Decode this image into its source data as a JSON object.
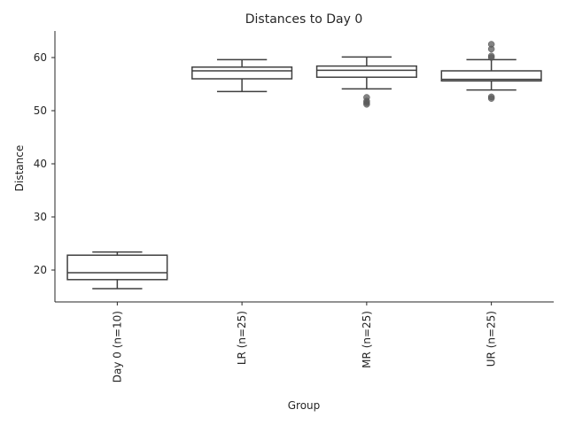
{
  "chart_data": {
    "type": "box",
    "title": "Distances to Day 0",
    "xlabel": "Group",
    "ylabel": "Distance",
    "categories": [
      "Day 0 (n=10)",
      "LR (n=25)",
      "MR (n=25)",
      "UR (n=25)"
    ],
    "yticks": [
      20,
      30,
      40,
      50,
      60
    ],
    "ylim": [
      14,
      65
    ],
    "grid": false,
    "boxes": [
      {
        "category": "Day 0 (n=10)",
        "whisker_low": 16.5,
        "q1": 18.2,
        "median": 19.5,
        "q3": 22.8,
        "whisker_high": 23.4,
        "outliers": []
      },
      {
        "category": "LR (n=25)",
        "whisker_low": 53.6,
        "q1": 56.0,
        "median": 57.5,
        "q3": 58.2,
        "whisker_high": 59.6,
        "outliers": []
      },
      {
        "category": "MR (n=25)",
        "whisker_low": 54.1,
        "q1": 56.3,
        "median": 57.6,
        "q3": 58.4,
        "whisker_high": 60.1,
        "outliers": [
          52.5,
          51.8,
          51.5,
          51.2
        ]
      },
      {
        "category": "UR (n=25)",
        "whisker_low": 53.9,
        "q1": 55.6,
        "median": 55.9,
        "q3": 57.5,
        "whisker_high": 59.6,
        "outliers": [
          62.5,
          61.6,
          60.3,
          60.0,
          52.6,
          52.3
        ]
      }
    ],
    "box_color": "#ffffff",
    "line_color": "#3f3f3f",
    "outlier_color": "#5a5a5a"
  }
}
